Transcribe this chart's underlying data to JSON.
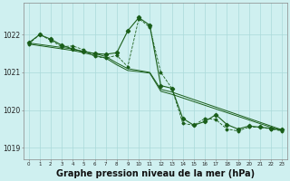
{
  "background_color": "#cff0f0",
  "grid_color": "#aadada",
  "line_color": "#1a5e1a",
  "xlabel": "Graphe pression niveau de la mer (hPa)",
  "xlabel_fontsize": 7,
  "ylabel_ticks": [
    1019,
    1020,
    1021,
    1022
  ],
  "xlim": [
    -0.5,
    23.5
  ],
  "ylim": [
    1018.7,
    1022.85
  ],
  "x_ticks": [
    0,
    1,
    2,
    3,
    4,
    5,
    6,
    7,
    8,
    9,
    10,
    11,
    12,
    13,
    14,
    15,
    16,
    17,
    18,
    19,
    20,
    21,
    22,
    23
  ],
  "series_main": {
    "x": [
      0,
      1,
      2,
      3,
      4,
      5,
      6,
      7,
      8,
      9,
      10,
      11,
      12,
      13,
      14,
      15,
      16,
      17,
      18,
      19,
      20,
      21,
      22,
      23
    ],
    "y": [
      1021.78,
      1022.0,
      1021.88,
      1021.72,
      1021.62,
      1021.55,
      1021.5,
      1021.48,
      1021.52,
      1022.1,
      1022.45,
      1022.25,
      1020.65,
      1020.58,
      1019.78,
      1019.6,
      1019.7,
      1019.88,
      1019.62,
      1019.5,
      1019.58,
      1019.55,
      1019.52,
      1019.48
    ]
  },
  "series_trend1": {
    "x": [
      0,
      4,
      5,
      6,
      7,
      8,
      9,
      10,
      11,
      12,
      13,
      23
    ],
    "y": [
      1021.78,
      1021.62,
      1021.55,
      1021.5,
      1021.42,
      1021.25,
      1021.1,
      1021.05,
      1021.0,
      1020.55,
      1020.48,
      1019.48
    ]
  },
  "series_trend2": {
    "x": [
      0,
      4,
      5,
      6,
      7,
      8,
      9,
      10,
      11,
      12,
      13,
      23
    ],
    "y": [
      1021.75,
      1021.58,
      1021.52,
      1021.45,
      1021.38,
      1021.2,
      1021.05,
      1021.02,
      1020.98,
      1020.5,
      1020.42,
      1019.45
    ]
  },
  "series_dotted": {
    "x": [
      0,
      1,
      2,
      3,
      4,
      5,
      6,
      7,
      8,
      9,
      10,
      11,
      12,
      13,
      14,
      15,
      16,
      17,
      18,
      19,
      20,
      21,
      22,
      23
    ],
    "y": [
      1021.75,
      1022.0,
      1021.85,
      1021.68,
      1021.7,
      1021.6,
      1021.42,
      1021.38,
      1021.45,
      1021.15,
      1022.42,
      1022.2,
      1021.0,
      1020.58,
      1019.65,
      1019.6,
      1019.78,
      1019.75,
      1019.5,
      1019.45,
      1019.55,
      1019.55,
      1019.5,
      1019.45
    ]
  }
}
